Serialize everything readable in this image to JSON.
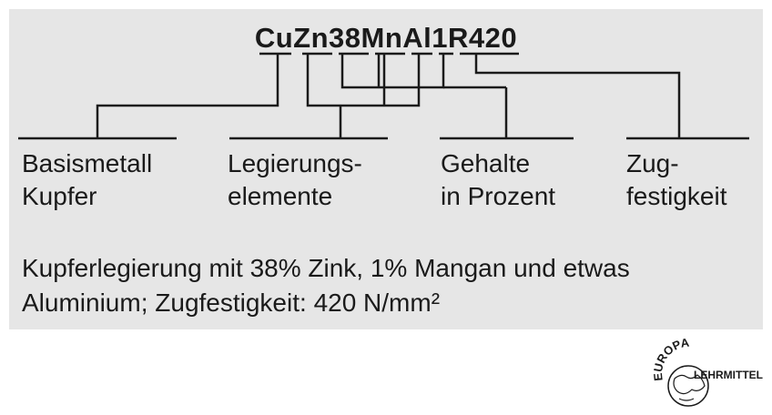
{
  "designation": "CuZn38MnAl1R420",
  "labels": {
    "base_metal": {
      "line1": "Basismetall",
      "line2": "Kupfer"
    },
    "alloy_elements": {
      "line1": "Legierungs-",
      "line2": "elemente"
    },
    "contents": {
      "line1": "Gehalte",
      "line2": "in Prozent"
    },
    "tensile": {
      "line1": "Zug-",
      "line2": "festigkeit"
    }
  },
  "description": {
    "line1": "Kupferlegierung mit 38% Zink, 1% Mangan und etwas",
    "line2": "Aluminium; Zugfestigkeit: 420 N/mm²"
  },
  "logo": {
    "top": "EUROPA",
    "right": "LEHRMITTEL"
  },
  "colors": {
    "panel": "#e6e6e6",
    "lines": "#1a1a1a"
  }
}
